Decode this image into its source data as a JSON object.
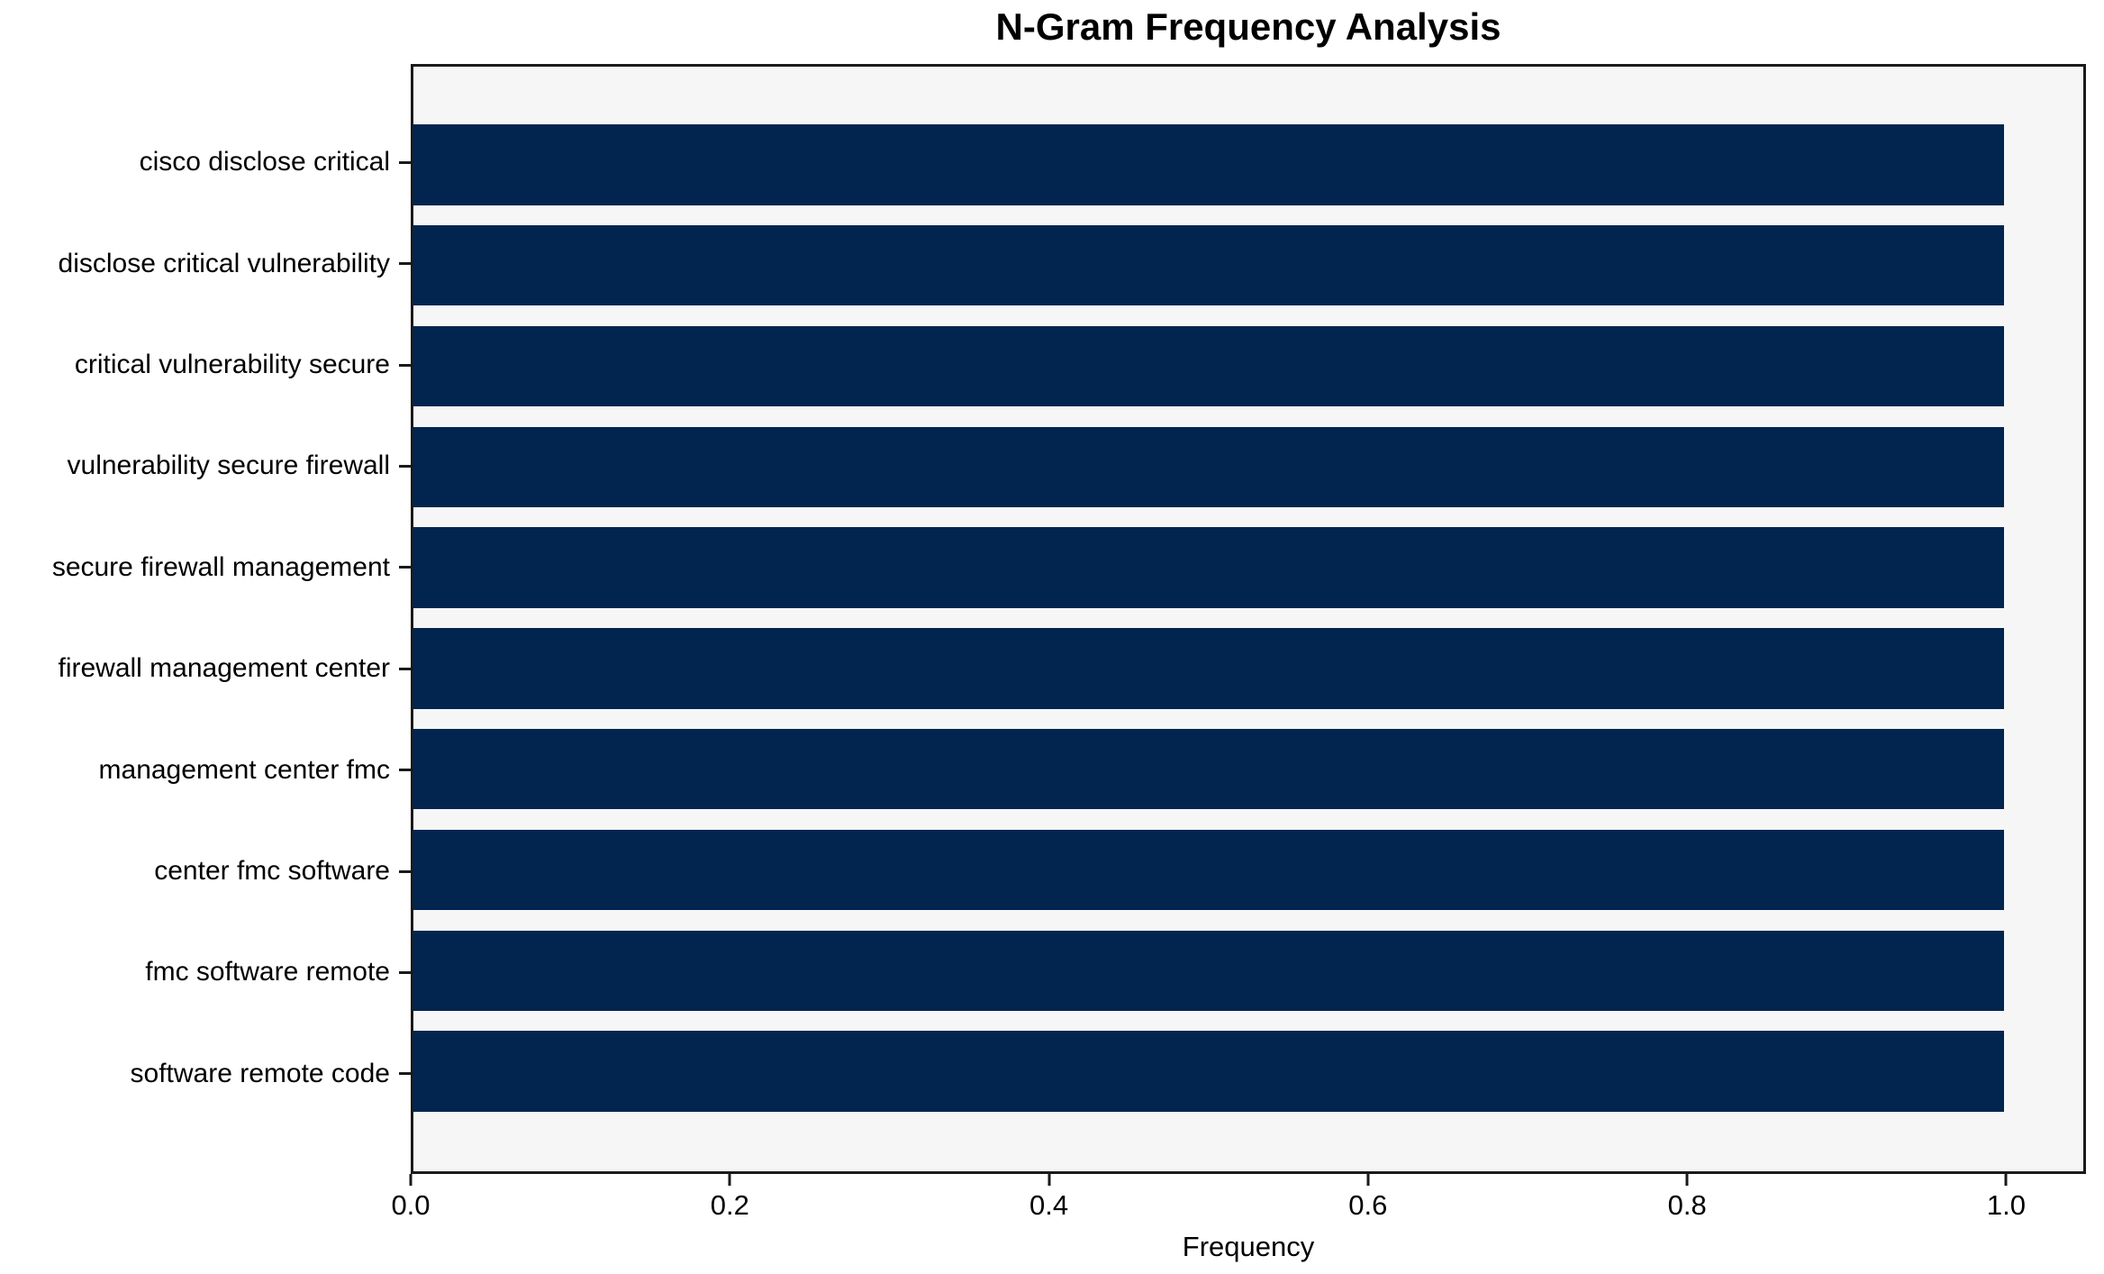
{
  "figure": {
    "background": "#ffffff",
    "plot_background": "#f6f6f7",
    "frame_color": "#1a1a1a"
  },
  "chart_data": {
    "type": "bar",
    "orientation": "horizontal",
    "title": "N-Gram Frequency Analysis",
    "xlabel": "Frequency",
    "ylabel": "",
    "categories": [
      "cisco disclose critical",
      "disclose critical vulnerability",
      "critical vulnerability secure",
      "vulnerability secure firewall",
      "secure firewall management",
      "firewall management center",
      "management center fmc",
      "center fmc software",
      "fmc software remote",
      "software remote code"
    ],
    "values": [
      1.0,
      1.0,
      1.0,
      1.0,
      1.0,
      1.0,
      1.0,
      1.0,
      1.0,
      1.0
    ],
    "bar_color": "#02254f",
    "xlim": [
      0,
      1.05
    ],
    "xticks": {
      "values": [
        0.0,
        0.2,
        0.4,
        0.6,
        0.8,
        1.0
      ],
      "labels": [
        "0.0",
        "0.2",
        "0.4",
        "0.6",
        "0.8",
        "1.0"
      ]
    },
    "grid": false,
    "legend": null
  }
}
